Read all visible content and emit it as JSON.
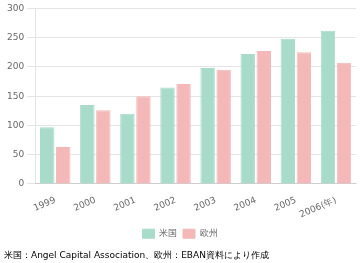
{
  "chart_data": {
    "type": "bar",
    "categories": [
      "1999",
      "2000",
      "2001",
      "2002",
      "2003",
      "2004",
      "2005",
      "2006(年)"
    ],
    "series": [
      {
        "name": "米国",
        "color": "#a8dbc9",
        "values": [
          97,
          135,
          120,
          165,
          198,
          222,
          248,
          262
        ]
      },
      {
        "name": "欧州",
        "color": "#f4b8b8",
        "values": [
          63,
          126,
          150,
          171,
          195,
          227,
          225,
          207
        ]
      }
    ],
    "ylim": [
      0,
      300
    ],
    "yticks": [
      0,
      50,
      100,
      150,
      200,
      250,
      300
    ],
    "grid": true,
    "legend": "bottom",
    "annotations": [
      "米国：Angel Capital Association、欧州：EBAN資料により作成"
    ]
  }
}
